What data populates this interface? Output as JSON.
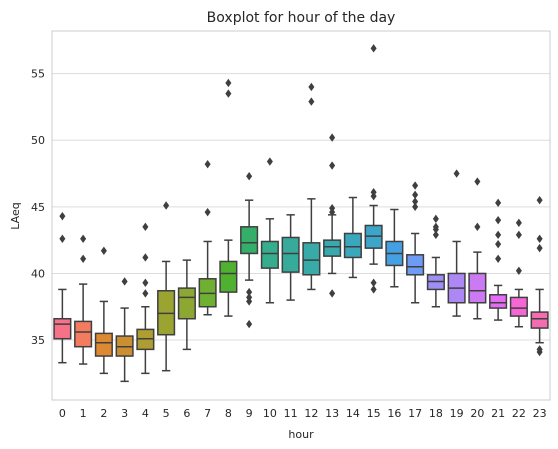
{
  "chart_data": {
    "type": "box",
    "title": "Boxplot for hour of the day",
    "xlabel": "hour",
    "ylabel": "LAeq",
    "ylim": [
      30.5,
      58.2
    ],
    "yticks": [
      35,
      40,
      45,
      50,
      55
    ],
    "grid": "horizontal",
    "categories": [
      "0",
      "1",
      "2",
      "3",
      "4",
      "5",
      "6",
      "7",
      "8",
      "9",
      "10",
      "11",
      "12",
      "13",
      "14",
      "15",
      "16",
      "17",
      "18",
      "19",
      "20",
      "21",
      "22",
      "23"
    ],
    "colors": [
      "#f77189",
      "#f37b5f",
      "#dc8932",
      "#cb8f32",
      "#ae9d31",
      "#9ba331",
      "#8ca832",
      "#6fb032",
      "#50b131",
      "#35ae69",
      "#36ad8c",
      "#37ab9b",
      "#38aaa7",
      "#39a9b0",
      "#3aa7bc",
      "#3ca5c9",
      "#44a0e2",
      "#6e9bf4",
      "#9f8ff4",
      "#ad88f4",
      "#cc7af4",
      "#e46cf4",
      "#f467d5",
      "#f56db0"
    ],
    "boxes": [
      {
        "whislo": 33.3,
        "q1": 35.1,
        "med": 36.2,
        "q3": 36.6,
        "whishi": 38.8,
        "fliers": [
          42.6,
          44.3
        ]
      },
      {
        "whislo": 33.2,
        "q1": 34.5,
        "med": 35.6,
        "q3": 36.4,
        "whishi": 39.2,
        "fliers": [
          41.1,
          42.6
        ]
      },
      {
        "whislo": 32.5,
        "q1": 33.8,
        "med": 34.8,
        "q3": 35.5,
        "whishi": 37.9,
        "fliers": [
          41.7
        ]
      },
      {
        "whislo": 31.9,
        "q1": 33.8,
        "med": 34.5,
        "q3": 35.3,
        "whishi": 37.4,
        "fliers": [
          39.4
        ]
      },
      {
        "whislo": 32.5,
        "q1": 34.3,
        "med": 35.1,
        "q3": 35.8,
        "whishi": 37.5,
        "fliers": [
          38.5,
          39.3,
          41.2,
          43.5
        ]
      },
      {
        "whislo": 32.7,
        "q1": 35.4,
        "med": 37.0,
        "q3": 38.7,
        "whishi": 40.9,
        "fliers": [
          45.1
        ]
      },
      {
        "whislo": 34.3,
        "q1": 36.6,
        "med": 38.2,
        "q3": 38.9,
        "whishi": 41.0,
        "fliers": []
      },
      {
        "whislo": 36.9,
        "q1": 37.5,
        "med": 38.5,
        "q3": 39.6,
        "whishi": 42.4,
        "fliers": [
          44.6,
          48.2
        ]
      },
      {
        "whislo": 36.8,
        "q1": 38.6,
        "med": 40.0,
        "q3": 40.9,
        "whishi": 42.5,
        "fliers": [
          53.5,
          54.3
        ]
      },
      {
        "whislo": 39.5,
        "q1": 41.5,
        "med": 42.3,
        "q3": 43.5,
        "whishi": 45.5,
        "fliers": [
          36.2,
          37.9,
          38.2,
          38.6,
          47.3
        ]
      },
      {
        "whislo": 37.8,
        "q1": 40.4,
        "med": 41.5,
        "q3": 42.4,
        "whishi": 44.1,
        "fliers": [
          48.4
        ]
      },
      {
        "whislo": 38.0,
        "q1": 40.1,
        "med": 41.5,
        "q3": 42.7,
        "whishi": 44.4,
        "fliers": []
      },
      {
        "whislo": 38.8,
        "q1": 39.9,
        "med": 41.0,
        "q3": 42.3,
        "whishi": 45.6,
        "fliers": [
          52.9,
          54.0
        ]
      },
      {
        "whislo": 40.0,
        "q1": 41.3,
        "med": 42.0,
        "q3": 42.5,
        "whishi": 44.4,
        "fliers": [
          38.5,
          44.6,
          44.9,
          48.1,
          50.2
        ]
      },
      {
        "whislo": 39.7,
        "q1": 41.2,
        "med": 42.0,
        "q3": 43.0,
        "whishi": 45.7,
        "fliers": []
      },
      {
        "whislo": 40.7,
        "q1": 41.9,
        "med": 42.8,
        "q3": 43.6,
        "whishi": 45.1,
        "fliers": [
          38.8,
          39.3,
          45.8,
          46.1,
          56.9
        ]
      },
      {
        "whislo": 39.0,
        "q1": 40.6,
        "med": 41.5,
        "q3": 42.4,
        "whishi": 44.8,
        "fliers": []
      },
      {
        "whislo": 37.8,
        "q1": 39.9,
        "med": 40.5,
        "q3": 41.4,
        "whishi": 43.0,
        "fliers": [
          45.0,
          45.4,
          45.9,
          46.6
        ]
      },
      {
        "whislo": 37.5,
        "q1": 38.8,
        "med": 39.4,
        "q3": 39.9,
        "whishi": 41.2,
        "fliers": [
          42.9,
          43.3,
          43.5,
          44.1
        ]
      },
      {
        "whislo": 36.8,
        "q1": 37.8,
        "med": 38.9,
        "q3": 40.0,
        "whishi": 42.4,
        "fliers": [
          47.5
        ]
      },
      {
        "whislo": 36.6,
        "q1": 37.8,
        "med": 38.7,
        "q3": 40.0,
        "whishi": 41.6,
        "fliers": [
          43.5,
          46.9
        ]
      },
      {
        "whislo": 36.5,
        "q1": 37.4,
        "med": 37.8,
        "q3": 38.4,
        "whishi": 39.1,
        "fliers": [
          41.1,
          42.2,
          42.9,
          44.0,
          45.3
        ]
      },
      {
        "whislo": 36.0,
        "q1": 36.8,
        "med": 37.4,
        "q3": 38.2,
        "whishi": 38.8,
        "fliers": [
          40.2,
          42.9,
          43.8
        ]
      },
      {
        "whislo": 34.8,
        "q1": 35.9,
        "med": 36.6,
        "q3": 37.1,
        "whishi": 38.8,
        "fliers": [
          34.1,
          34.3,
          41.9,
          42.6,
          45.5
        ]
      }
    ]
  }
}
